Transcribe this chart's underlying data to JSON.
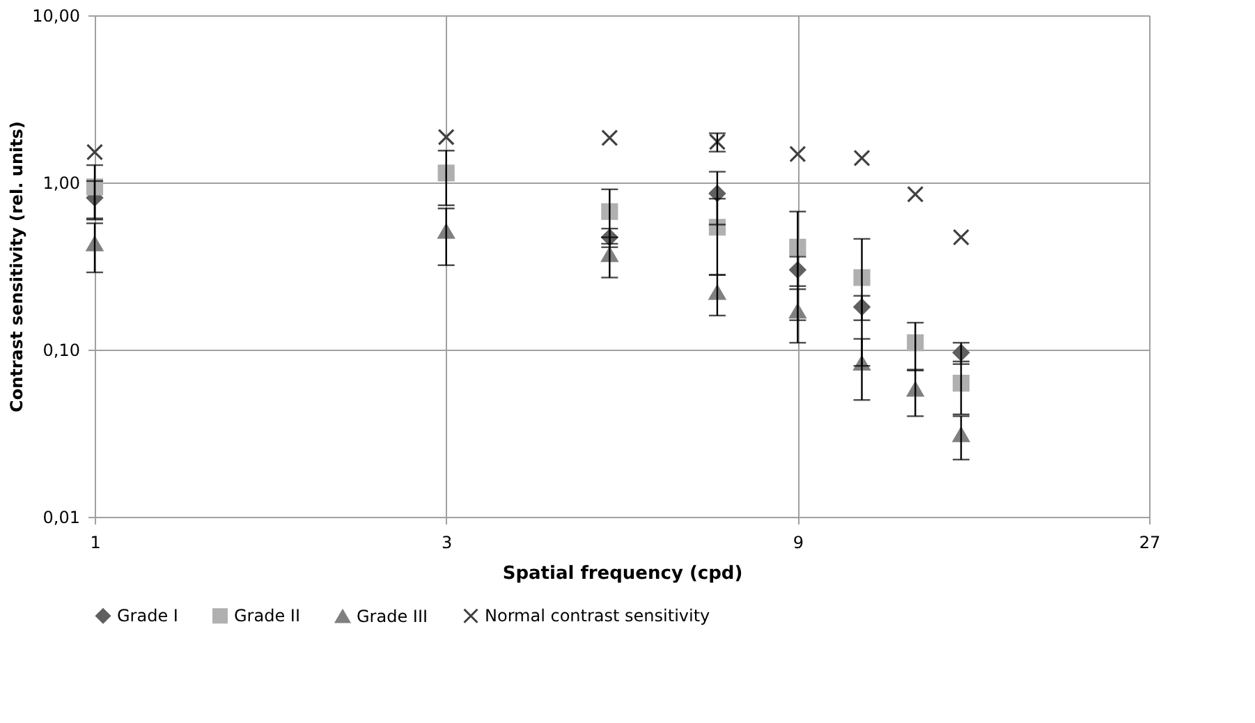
{
  "chart_data": {
    "type": "scatter",
    "xlabel": "Spatial frequency (cpd)",
    "ylabel": "Contrast sensitivity (rel. units)",
    "x": [
      1,
      3,
      5,
      7,
      9,
      11,
      13,
      15
    ],
    "series": [
      {
        "name": "Grade I",
        "color": "#606060",
        "marker": "diamond",
        "values": [
          0.81,
          null,
          0.47,
          0.86,
          0.3,
          0.18,
          null,
          0.096
        ],
        "errors": [
          0.21,
          null,
          0.06,
          0.3,
          0.06,
          0.03,
          null,
          0.014
        ]
      },
      {
        "name": "Grade II",
        "color": "#b0b0b0",
        "marker": "square",
        "values": [
          0.94,
          1.14,
          0.67,
          0.54,
          0.41,
          0.27,
          0.11,
          0.063
        ],
        "errors": [
          0.33,
          0.41,
          0.24,
          0.26,
          0.26,
          0.19,
          0.035,
          0.022
        ]
      },
      {
        "name": "Grade III",
        "color": "#808080",
        "marker": "triangle",
        "values": [
          0.43,
          0.51,
          0.37,
          0.22,
          0.17,
          0.083,
          0.058,
          0.031
        ],
        "errors": [
          0.14,
          0.19,
          0.1,
          0.06,
          0.06,
          0.033,
          0.018,
          0.009
        ]
      },
      {
        "name": "Normal contrast sensitivity",
        "color": "#404040",
        "marker": "cross",
        "values": [
          1.52,
          1.87,
          1.85,
          1.75,
          1.48,
          1.4,
          0.85,
          0.47
        ],
        "errors": [
          null,
          null,
          null,
          0.22,
          null,
          null,
          null,
          null
        ]
      }
    ],
    "log": "xy",
    "xlim": [
      1,
      27
    ],
    "xticks": [
      1,
      3,
      9,
      27
    ],
    "ylim": [
      0.01,
      10
    ],
    "yticks": [
      {
        "value": 0.01,
        "label": "0,01"
      },
      {
        "value": 0.1,
        "label": "0,10"
      },
      {
        "value": 1,
        "label": "1,00"
      },
      {
        "value": 10,
        "label": "10,00"
      }
    ],
    "grid": true,
    "legend": "bottom"
  }
}
